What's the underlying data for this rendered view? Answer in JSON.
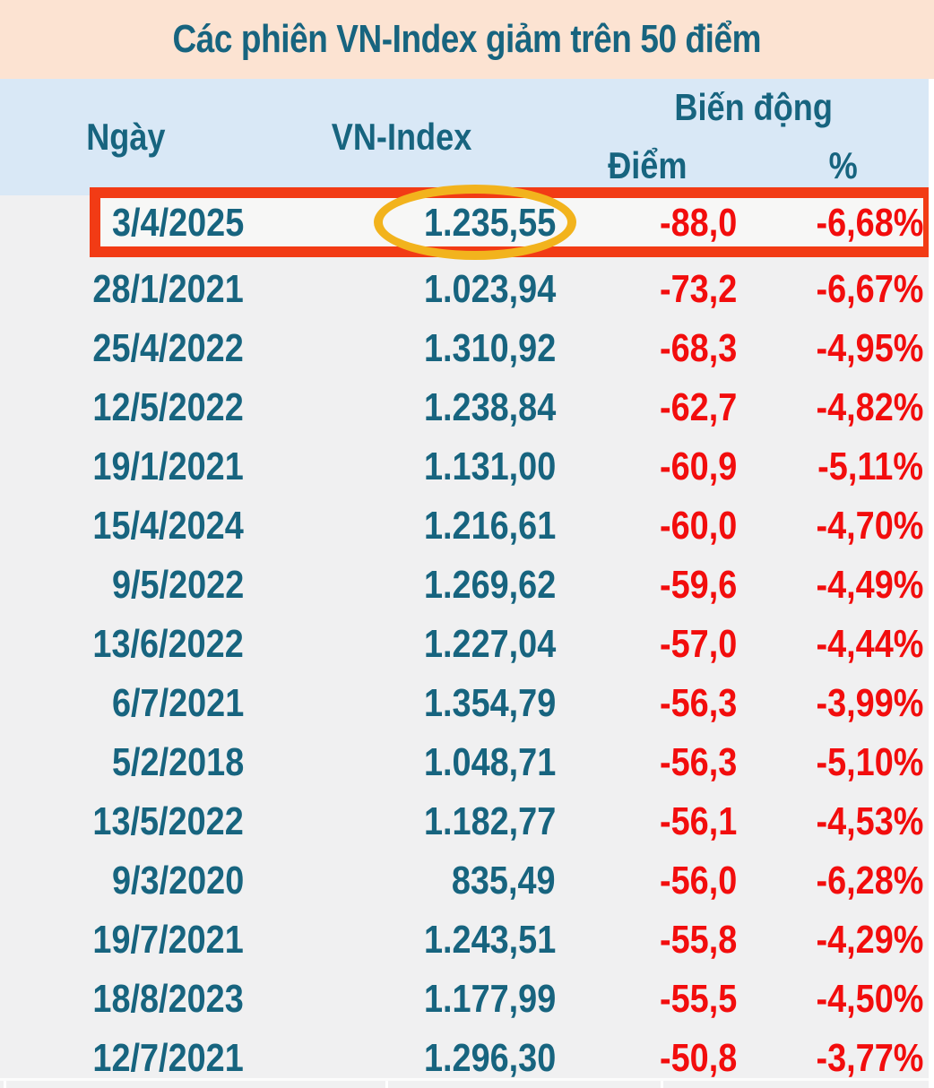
{
  "title": "Các phiên VN-Index giảm trên 50 điểm",
  "colors": {
    "peach": "#fce3d2",
    "header_blue": "#d9e8f6",
    "teal": "#17647f",
    "val_red": "#f20d0d",
    "box_red": "#f23b15",
    "circle_gold": "#f2b31d",
    "row_gray": "#f0f0f1"
  },
  "chart_data": {
    "type": "table",
    "title": "Các phiên VN-Index giảm trên 50 điểm",
    "columns": {
      "date": "Ngày",
      "index": "VN-Index",
      "change_group": "Biến động",
      "points": "Điểm",
      "percent": "%"
    },
    "rows": [
      {
        "date": "3/4/2025",
        "index": "1.235,55",
        "points": "-88,0",
        "percent": "-6,68%"
      },
      {
        "date": "28/1/2021",
        "index": "1.023,94",
        "points": "-73,2",
        "percent": "-6,67%"
      },
      {
        "date": "25/4/2022",
        "index": "1.310,92",
        "points": "-68,3",
        "percent": "-4,95%"
      },
      {
        "date": "12/5/2022",
        "index": "1.238,84",
        "points": "-62,7",
        "percent": "-4,82%"
      },
      {
        "date": "19/1/2021",
        "index": "1.131,00",
        "points": "-60,9",
        "percent": "-5,11%"
      },
      {
        "date": "15/4/2024",
        "index": "1.216,61",
        "points": "-60,0",
        "percent": "-4,70%"
      },
      {
        "date": "9/5/2022",
        "index": "1.269,62",
        "points": "-59,6",
        "percent": "-4,49%"
      },
      {
        "date": "13/6/2022",
        "index": "1.227,04",
        "points": "-57,0",
        "percent": "-4,44%"
      },
      {
        "date": "6/7/2021",
        "index": "1.354,79",
        "points": "-56,3",
        "percent": "-3,99%"
      },
      {
        "date": "5/2/2018",
        "index": "1.048,71",
        "points": "-56,3",
        "percent": "-5,10%"
      },
      {
        "date": "13/5/2022",
        "index": "1.182,77",
        "points": "-56,1",
        "percent": "-4,53%"
      },
      {
        "date": "9/3/2020",
        "index": "835,49",
        "points": "-56,0",
        "percent": "-6,28%"
      },
      {
        "date": "19/7/2021",
        "index": "1.243,51",
        "points": "-55,8",
        "percent": "-4,29%"
      },
      {
        "date": "18/8/2023",
        "index": "1.177,99",
        "points": "-55,5",
        "percent": "-4,50%"
      },
      {
        "date": "12/7/2021",
        "index": "1.296,30",
        "points": "-50,8",
        "percent": "-3,77%"
      }
    ],
    "annotations": {
      "highlighted_row_date": "3/4/2025",
      "circled_value": "1.235,55",
      "highlight_box_color": "#f23b15",
      "circle_color": "#f2b31d"
    },
    "layout": {
      "grid": "off",
      "header_rows": 2,
      "value_alignment": "right"
    }
  }
}
